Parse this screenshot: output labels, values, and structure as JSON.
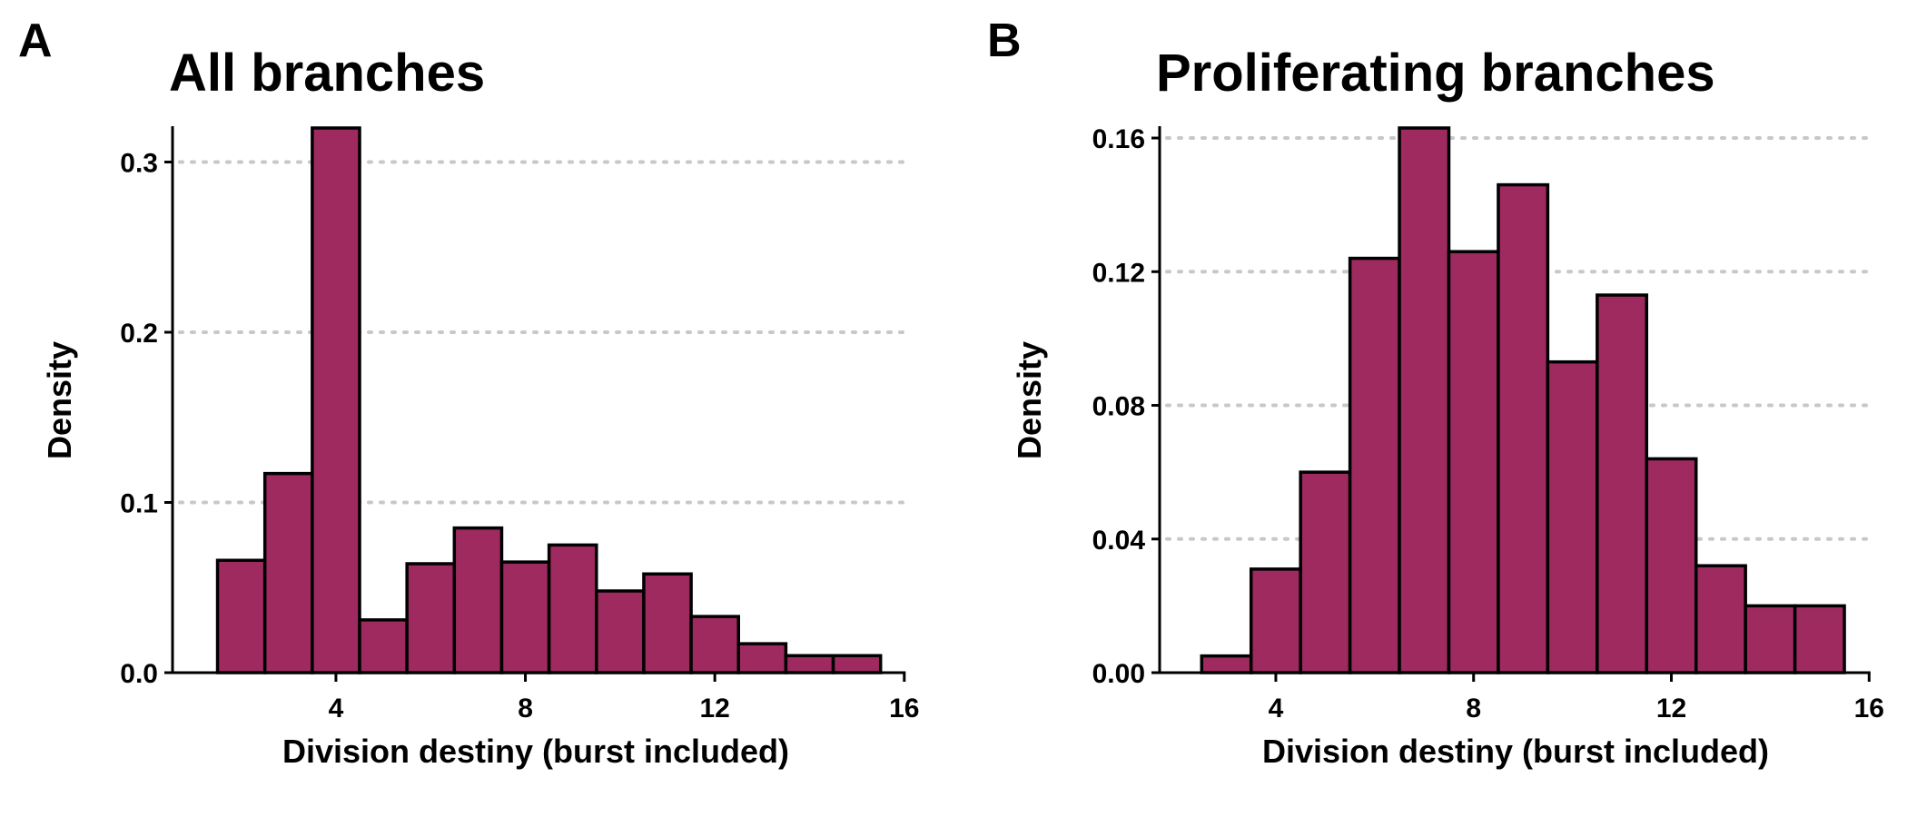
{
  "chart_data": [
    {
      "type": "bar",
      "panel": "A",
      "title": "All branches",
      "xlabel": "Division destiny (burst included)",
      "ylabel": "Density",
      "xlim": [
        0.55,
        16.1
      ],
      "ylim": [
        0,
        0.32
      ],
      "xticks": [
        4,
        8,
        12,
        16
      ],
      "yticks": [
        0.0,
        0.1,
        0.2,
        0.3
      ],
      "ytick_labels": [
        "0.0",
        "0.1",
        "0.2",
        "0.3"
      ],
      "grid": "horizontal dotted",
      "bar_color": "#9e2a60",
      "bins": [
        {
          "x0": 1.5,
          "x1": 2.5,
          "value": 0.066
        },
        {
          "x0": 2.5,
          "x1": 3.5,
          "value": 0.117
        },
        {
          "x0": 3.5,
          "x1": 4.5,
          "value": 0.32
        },
        {
          "x0": 4.5,
          "x1": 5.5,
          "value": 0.031
        },
        {
          "x0": 5.5,
          "x1": 6.5,
          "value": 0.064
        },
        {
          "x0": 6.5,
          "x1": 7.5,
          "value": 0.085
        },
        {
          "x0": 7.5,
          "x1": 8.5,
          "value": 0.065
        },
        {
          "x0": 8.5,
          "x1": 9.5,
          "value": 0.075
        },
        {
          "x0": 9.5,
          "x1": 10.5,
          "value": 0.048
        },
        {
          "x0": 10.5,
          "x1": 11.5,
          "value": 0.058
        },
        {
          "x0": 11.5,
          "x1": 12.5,
          "value": 0.033
        },
        {
          "x0": 12.5,
          "x1": 13.5,
          "value": 0.017
        },
        {
          "x0": 13.5,
          "x1": 14.5,
          "value": 0.01
        },
        {
          "x0": 14.5,
          "x1": 15.5,
          "value": 0.01
        }
      ]
    },
    {
      "type": "bar",
      "panel": "B",
      "title": "Proliferating branches",
      "xlabel": "Division destiny (burst included)",
      "ylabel": "Density",
      "xlim": [
        1.65,
        16.05
      ],
      "ylim": [
        0,
        0.163
      ],
      "xticks": [
        4,
        8,
        12,
        16
      ],
      "yticks": [
        0.0,
        0.04,
        0.08,
        0.12,
        0.16
      ],
      "ytick_labels": [
        "0.00",
        "0.04",
        "0.08",
        "0.12",
        "0.16"
      ],
      "grid": "horizontal dotted",
      "bar_color": "#9e2a60",
      "bins": [
        {
          "x0": 2.5,
          "x1": 3.5,
          "value": 0.005
        },
        {
          "x0": 3.5,
          "x1": 4.5,
          "value": 0.031
        },
        {
          "x0": 4.5,
          "x1": 5.5,
          "value": 0.06
        },
        {
          "x0": 5.5,
          "x1": 6.5,
          "value": 0.124
        },
        {
          "x0": 6.5,
          "x1": 7.5,
          "value": 0.163
        },
        {
          "x0": 7.5,
          "x1": 8.5,
          "value": 0.126
        },
        {
          "x0": 8.5,
          "x1": 9.5,
          "value": 0.146
        },
        {
          "x0": 9.5,
          "x1": 10.5,
          "value": 0.093
        },
        {
          "x0": 10.5,
          "x1": 11.5,
          "value": 0.113
        },
        {
          "x0": 11.5,
          "x1": 12.5,
          "value": 0.064
        },
        {
          "x0": 12.5,
          "x1": 13.5,
          "value": 0.032
        },
        {
          "x0": 13.5,
          "x1": 14.5,
          "value": 0.02
        },
        {
          "x0": 14.5,
          "x1": 15.5,
          "value": 0.02
        }
      ]
    }
  ]
}
